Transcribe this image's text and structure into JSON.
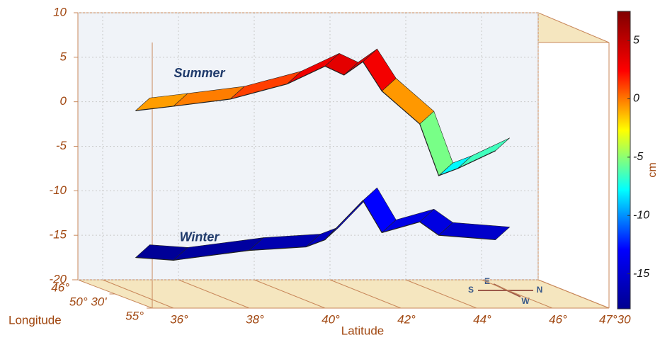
{
  "chart_data": {
    "type": "surface",
    "series": [
      {
        "name": "Summer",
        "x": [
          35,
          36,
          37.5,
          39,
          40,
          40.5,
          41,
          41.5,
          42.5,
          43,
          43.5,
          44.5
        ],
        "values": [
          -1,
          -0.5,
          0.3,
          2,
          4,
          3,
          4.5,
          1.2,
          -2.5,
          -8.3,
          -7.5,
          -5.5
        ]
      },
      {
        "name": "Winter",
        "x": [
          35,
          36,
          38,
          39.5,
          40,
          41,
          41.5,
          42.5,
          43,
          44.5
        ],
        "values": [
          -17.5,
          -17.8,
          -16.7,
          -16.3,
          -15.5,
          -11.1,
          -14.7,
          -13.5,
          -15,
          -15.5
        ]
      }
    ],
    "x_label": "Latitude",
    "y_label": "Longitude",
    "colorbar_label": "cm",
    "xticks": [
      {
        "value": 36,
        "label": "36°"
      },
      {
        "value": 38,
        "label": "38°"
      },
      {
        "value": 40,
        "label": "40°"
      },
      {
        "value": 42,
        "label": "42°"
      },
      {
        "value": 44,
        "label": "44°"
      },
      {
        "value": 46,
        "label": "46°"
      },
      {
        "value": 47.5,
        "label": "47°30"
      }
    ],
    "yticks": [
      {
        "value": 46,
        "label": "46°"
      },
      {
        "value": 50.5,
        "label": "50° 30'"
      },
      {
        "value": 55,
        "label": "55°"
      }
    ],
    "zlim": [
      -20,
      10
    ],
    "zticks": [
      10,
      5,
      0,
      -5,
      -10,
      -15,
      -20
    ],
    "clim": [
      -18,
      7.5
    ],
    "cticks": [
      5,
      0,
      -5,
      -10,
      -15
    ],
    "colormap": [
      "#00008f",
      "#0000ff",
      "#00ffff",
      "#ffff00",
      "#ff0000",
      "#800000"
    ],
    "compass": [
      "S",
      "E",
      "N",
      "W"
    ]
  }
}
